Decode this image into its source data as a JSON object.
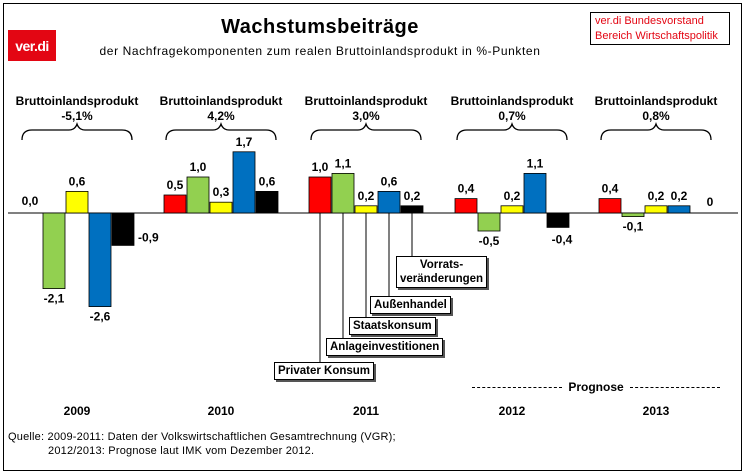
{
  "header": {
    "logo": "ver.di",
    "title": "Wachstumsbeiträge",
    "subtitle": "der Nachfragekomponenten zum realen Bruttoinlandsprodukt in %-Punkten",
    "source_line1": "ver.di Bundesvorstand",
    "source_line2": "Bereich Wirtschaftspolitik"
  },
  "prognose_label": "Prognose",
  "footer": {
    "line1": "Quelle: 2009-2011: Daten der Volkswirtschaftlichen Gesamtrechnung (VGR);",
    "line2": "2012/2013: Prognose laut IMK vom Dezember 2012."
  },
  "callouts": {
    "vorrat_line1": "Vorrats-",
    "vorrat_line2": "veränderungen",
    "aussenhandel": "Außenhandel",
    "staatskonsum": "Staatskonsum",
    "anlageinvestitionen": "Anlageinvestitionen",
    "privater_konsum": "Privater Konsum"
  },
  "chart_data": {
    "type": "bar",
    "title": "Wachstumsbeiträge",
    "subtitle": "der Nachfragekomponenten zum realen Bruttoinlandsprodukt in %-Punkten",
    "categories": [
      "2009",
      "2010",
      "2011",
      "2012",
      "2013"
    ],
    "bip_label": "Bruttoinlandsprodukt",
    "bip_values": [
      "-5,1%",
      "4,2%",
      "3,0%",
      "0,7%",
      "0,8%"
    ],
    "series": [
      {
        "name": "Privater Konsum",
        "color": "#ff0000",
        "values": [
          0.0,
          0.5,
          1.0,
          0.4,
          0.4
        ]
      },
      {
        "name": "Anlageinvestitionen",
        "color": "#92d050",
        "values": [
          -2.1,
          1.0,
          1.1,
          -0.5,
          -0.1
        ]
      },
      {
        "name": "Staatskonsum",
        "color": "#ffff00",
        "values": [
          0.6,
          0.3,
          0.2,
          0.2,
          0.2
        ]
      },
      {
        "name": "Außenhandel",
        "color": "#0070c0",
        "values": [
          -2.6,
          1.7,
          0.6,
          1.1,
          0.2
        ]
      },
      {
        "name": "Vorratsveränderungen",
        "color": "#000000",
        "values": [
          -0.9,
          0.6,
          0.2,
          -0.4,
          0
        ]
      }
    ],
    "value_labels": [
      [
        "0,0",
        "-2,1",
        "0,6",
        "-2,6",
        "-0,9"
      ],
      [
        "0,5",
        "1,0",
        "0,3",
        "1,7",
        "0,6"
      ],
      [
        "1,0",
        "1,1",
        "0,2",
        "0,6",
        "0,2"
      ],
      [
        "0,4",
        "-0,5",
        "0,2",
        "1,1",
        "-0,4"
      ],
      [
        "0,4",
        "-0,1",
        "0,2",
        "0,2",
        "0"
      ]
    ],
    "prognose_years": [
      "2012",
      "2013"
    ],
    "grid": false,
    "legend": "callouts"
  }
}
